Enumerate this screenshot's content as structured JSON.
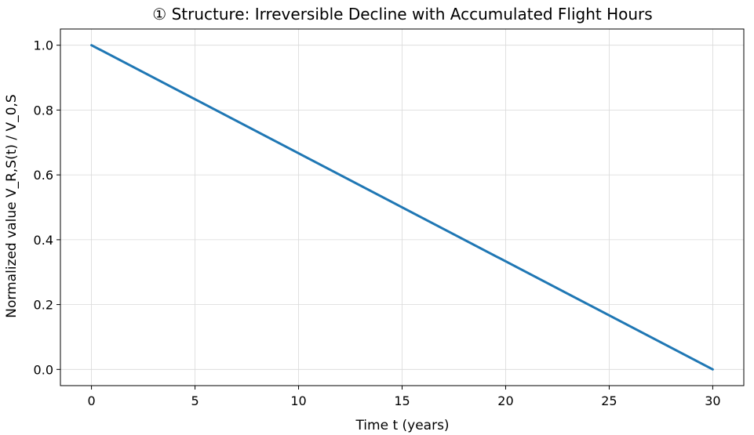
{
  "chart_data": {
    "type": "line",
    "title": "① Structure: Irreversible Decline with Accumulated Flight Hours",
    "xlabel": "Time t (years)",
    "ylabel": "Normalized value  V_R,S(t) / V_0,S",
    "xlim": [
      -1.5,
      31.5
    ],
    "ylim": [
      -0.05,
      1.05
    ],
    "xticks": [
      0,
      5,
      10,
      15,
      20,
      25,
      30
    ],
    "yticks": [
      0.0,
      0.2,
      0.4,
      0.6,
      0.8,
      1.0
    ],
    "ytick_labels": [
      "0.0",
      "0.2",
      "0.4",
      "0.6",
      "0.8",
      "1.0"
    ],
    "grid": true,
    "series": [
      {
        "color": "#1f77b4",
        "x": [
          0,
          30
        ],
        "y": [
          1.0,
          0.0
        ]
      }
    ]
  }
}
